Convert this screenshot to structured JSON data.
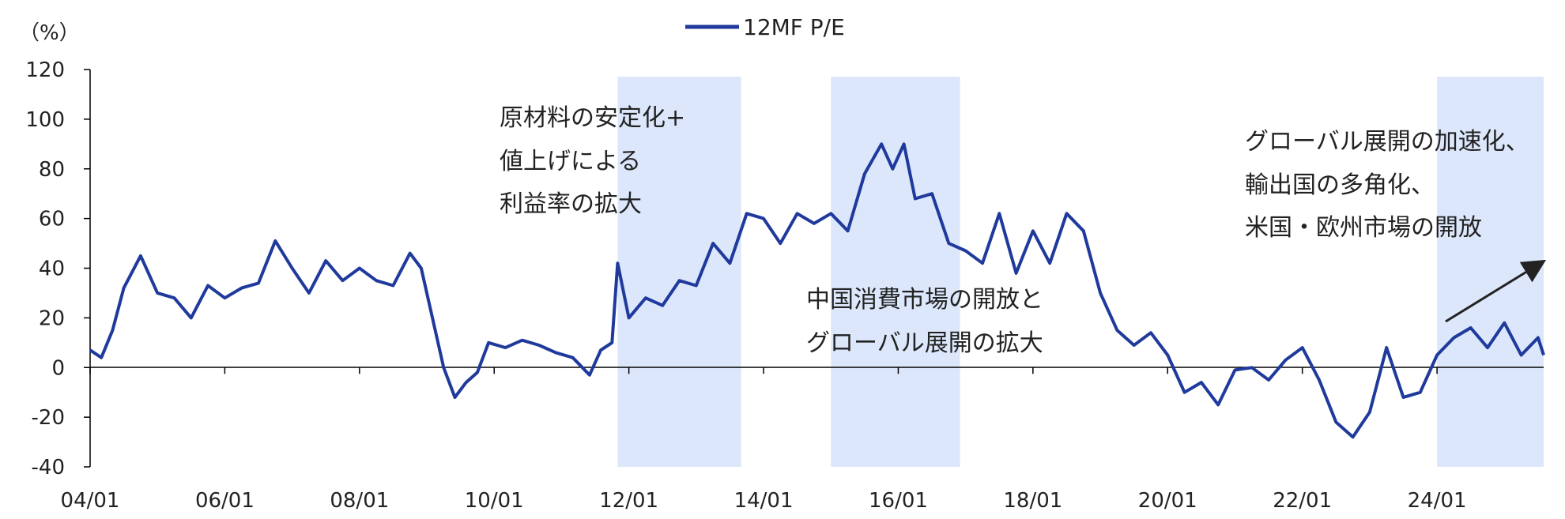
{
  "chart_data": {
    "type": "line",
    "y_unit_label": "（%）",
    "ylim": [
      -40,
      120
    ],
    "y_ticks": [
      120,
      100,
      80,
      60,
      40,
      20,
      0,
      -20,
      -40
    ],
    "x_start": "2004-01",
    "x_end": "2025-08",
    "x_ticks": [
      {
        "date": "2004-01",
        "label": "04/01"
      },
      {
        "date": "2006-01",
        "label": "06/01"
      },
      {
        "date": "2008-01",
        "label": "08/01"
      },
      {
        "date": "2010-01",
        "label": "10/01"
      },
      {
        "date": "2012-01",
        "label": "12/01"
      },
      {
        "date": "2014-01",
        "label": "14/01"
      },
      {
        "date": "2016-01",
        "label": "16/01"
      },
      {
        "date": "2018-01",
        "label": "18/01"
      },
      {
        "date": "2020-01",
        "label": "20/01"
      },
      {
        "date": "2022-01",
        "label": "22/01"
      },
      {
        "date": "2024-01",
        "label": "24/01"
      }
    ],
    "legend_position": "top-center",
    "grid": false,
    "series": [
      {
        "name": "12MF P/E",
        "color": "#1f3a9c",
        "points": [
          [
            "2004-01",
            7
          ],
          [
            "2004-03",
            4
          ],
          [
            "2004-05",
            15
          ],
          [
            "2004-07",
            32
          ],
          [
            "2004-10",
            45
          ],
          [
            "2005-01",
            30
          ],
          [
            "2005-04",
            28
          ],
          [
            "2005-07",
            20
          ],
          [
            "2005-10",
            33
          ],
          [
            "2006-01",
            28
          ],
          [
            "2006-04",
            32
          ],
          [
            "2006-07",
            34
          ],
          [
            "2006-10",
            51
          ],
          [
            "2007-01",
            40
          ],
          [
            "2007-04",
            30
          ],
          [
            "2007-07",
            43
          ],
          [
            "2007-10",
            35
          ],
          [
            "2008-01",
            40
          ],
          [
            "2008-04",
            35
          ],
          [
            "2008-07",
            33
          ],
          [
            "2008-10",
            46
          ],
          [
            "2008-12",
            40
          ],
          [
            "2009-02",
            20
          ],
          [
            "2009-04",
            0
          ],
          [
            "2009-06",
            -12
          ],
          [
            "2009-08",
            -6
          ],
          [
            "2009-10",
            -2
          ],
          [
            "2009-12",
            10
          ],
          [
            "2010-03",
            8
          ],
          [
            "2010-06",
            11
          ],
          [
            "2010-09",
            9
          ],
          [
            "2010-12",
            6
          ],
          [
            "2011-03",
            4
          ],
          [
            "2011-06",
            -3
          ],
          [
            "2011-08",
            7
          ],
          [
            "2011-10",
            10
          ],
          [
            "2011-11",
            42
          ],
          [
            "2012-01",
            20
          ],
          [
            "2012-04",
            28
          ],
          [
            "2012-07",
            25
          ],
          [
            "2012-10",
            35
          ],
          [
            "2013-01",
            33
          ],
          [
            "2013-04",
            50
          ],
          [
            "2013-07",
            42
          ],
          [
            "2013-10",
            62
          ],
          [
            "2014-01",
            60
          ],
          [
            "2014-04",
            50
          ],
          [
            "2014-07",
            62
          ],
          [
            "2014-10",
            58
          ],
          [
            "2015-01",
            62
          ],
          [
            "2015-04",
            55
          ],
          [
            "2015-07",
            78
          ],
          [
            "2015-10",
            90
          ],
          [
            "2015-12",
            80
          ],
          [
            "2016-02",
            90
          ],
          [
            "2016-04",
            68
          ],
          [
            "2016-07",
            70
          ],
          [
            "2016-10",
            50
          ],
          [
            "2017-01",
            47
          ],
          [
            "2017-04",
            42
          ],
          [
            "2017-07",
            62
          ],
          [
            "2017-10",
            38
          ],
          [
            "2018-01",
            55
          ],
          [
            "2018-04",
            42
          ],
          [
            "2018-07",
            62
          ],
          [
            "2018-10",
            55
          ],
          [
            "2019-01",
            30
          ],
          [
            "2019-04",
            15
          ],
          [
            "2019-07",
            9
          ],
          [
            "2019-10",
            14
          ],
          [
            "2020-01",
            5
          ],
          [
            "2020-04",
            -10
          ],
          [
            "2020-07",
            -6
          ],
          [
            "2020-10",
            -15
          ],
          [
            "2021-01",
            -1
          ],
          [
            "2021-04",
            0
          ],
          [
            "2021-07",
            -5
          ],
          [
            "2021-10",
            3
          ],
          [
            "2022-01",
            8
          ],
          [
            "2022-04",
            -5
          ],
          [
            "2022-07",
            -22
          ],
          [
            "2022-10",
            -28
          ],
          [
            "2023-01",
            -18
          ],
          [
            "2023-04",
            8
          ],
          [
            "2023-07",
            -12
          ],
          [
            "2023-10",
            -10
          ],
          [
            "2024-01",
            5
          ],
          [
            "2024-04",
            12
          ],
          [
            "2024-07",
            16
          ],
          [
            "2024-10",
            8
          ],
          [
            "2025-01",
            18
          ],
          [
            "2025-04",
            5
          ],
          [
            "2025-07",
            12
          ],
          [
            "2025-08",
            5
          ]
        ]
      }
    ],
    "shaded_periods": [
      {
        "start": "2011-11",
        "end": "2013-09",
        "color": "#dce7fb"
      },
      {
        "start": "2015-01",
        "end": "2016-12",
        "color": "#dce7fb"
      },
      {
        "start": "2024-01",
        "end": "2025-08",
        "color": "#dce7fb"
      }
    ],
    "annotations": [
      {
        "lines": [
          "原材料の安定化+",
          "値上げによる",
          "利益率の拡大"
        ]
      },
      {
        "lines": [
          "中国消費市場の開放と",
          "グローバル展開の拡大"
        ]
      },
      {
        "lines": [
          "グローバル展開の加速化、",
          "輸出国の多角化、",
          "米国・欧州市場の開放"
        ]
      }
    ]
  }
}
